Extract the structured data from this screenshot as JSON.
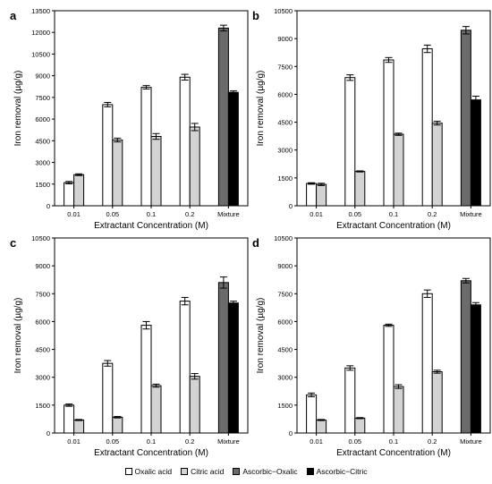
{
  "chart_data": [
    {
      "type": "bar",
      "panel_label": "a",
      "categories": [
        "0.01",
        "0.05",
        "0.1",
        "0.2",
        "Mixture"
      ],
      "xlabel": "Extractant Concentration (M)",
      "ylabel": "Iron removal (µg/g)",
      "ylim": [
        0,
        13500
      ],
      "yticks": [
        0,
        1500,
        3000,
        4500,
        6000,
        7500,
        9000,
        10500,
        12000,
        13500
      ],
      "series": [
        {
          "name": "Oxalic acid",
          "color": "#ffffff",
          "values": [
            1600,
            7000,
            8200,
            8900,
            null
          ],
          "errors": [
            80,
            150,
            120,
            200,
            null
          ]
        },
        {
          "name": "Citric acid",
          "color": "#d3d3d3",
          "values": [
            2150,
            4550,
            4800,
            5450,
            null
          ],
          "errors": [
            60,
            130,
            200,
            250,
            null
          ]
        },
        {
          "name": "Ascorbic−Oxalic",
          "color": "#6b6b6b",
          "values": [
            null,
            null,
            null,
            null,
            12300
          ],
          "errors": [
            null,
            null,
            null,
            null,
            200
          ]
        },
        {
          "name": "Ascorbic−Citric",
          "color": "#000000",
          "values": [
            null,
            null,
            null,
            null,
            7850
          ],
          "errors": [
            null,
            null,
            null,
            null,
            100
          ]
        }
      ]
    },
    {
      "type": "bar",
      "panel_label": "b",
      "categories": [
        "0.01",
        "0.05",
        "0.1",
        "0.2",
        "Mixture"
      ],
      "xlabel": "Extractant Concentration (M)",
      "ylabel": "Iron removal (µg/g)",
      "ylim": [
        0,
        10500
      ],
      "yticks": [
        0,
        1500,
        3000,
        4500,
        6000,
        7500,
        9000,
        10500
      ],
      "series": [
        {
          "name": "Oxalic acid",
          "color": "#ffffff",
          "values": [
            1200,
            6900,
            7850,
            8450,
            null
          ],
          "errors": [
            40,
            150,
            130,
            200,
            null
          ]
        },
        {
          "name": "Citric acid",
          "color": "#d3d3d3",
          "values": [
            1150,
            1850,
            3850,
            4450,
            null
          ],
          "errors": [
            60,
            30,
            60,
            100,
            null
          ]
        },
        {
          "name": "Ascorbic−Oxalic",
          "color": "#6b6b6b",
          "values": [
            null,
            null,
            null,
            null,
            9450
          ],
          "errors": [
            null,
            null,
            null,
            null,
            200
          ]
        },
        {
          "name": "Ascorbic−Citric",
          "color": "#000000",
          "values": [
            null,
            null,
            null,
            null,
            5700
          ],
          "errors": [
            null,
            null,
            null,
            null,
            200
          ]
        }
      ]
    },
    {
      "type": "bar",
      "panel_label": "c",
      "categories": [
        "0.01",
        "0.05",
        "0.1",
        "0.2",
        "Mixture"
      ],
      "xlabel": "Extractant Concentration (M)",
      "ylabel": "Iron removal (µg/g)",
      "ylim": [
        0,
        10500
      ],
      "yticks": [
        0,
        1500,
        3000,
        4500,
        6000,
        7500,
        9000,
        10500
      ],
      "series": [
        {
          "name": "Oxalic acid",
          "color": "#ffffff",
          "values": [
            1500,
            3750,
            5800,
            7100,
            null
          ],
          "errors": [
            60,
            150,
            200,
            200,
            null
          ]
        },
        {
          "name": "Citric acid",
          "color": "#d3d3d3",
          "values": [
            700,
            850,
            2550,
            3050,
            null
          ],
          "errors": [
            30,
            40,
            80,
            150,
            null
          ]
        },
        {
          "name": "Ascorbic−Oxalic",
          "color": "#6b6b6b",
          "values": [
            null,
            null,
            null,
            null,
            8100
          ],
          "errors": [
            null,
            null,
            null,
            null,
            300
          ]
        },
        {
          "name": "Ascorbic−Citric",
          "color": "#000000",
          "values": [
            null,
            null,
            null,
            null,
            7000
          ],
          "errors": [
            null,
            null,
            null,
            null,
            100
          ]
        }
      ]
    },
    {
      "type": "bar",
      "panel_label": "d",
      "categories": [
        "0.01",
        "0.05",
        "0.1",
        "0.2",
        "Mixture"
      ],
      "xlabel": "Extractant Concentration (M)",
      "ylabel": "Iron removal (µg/g)",
      "ylim": [
        0,
        10500
      ],
      "yticks": [
        0,
        1500,
        3000,
        4500,
        6000,
        7500,
        9000,
        10500
      ],
      "series": [
        {
          "name": "Oxalic acid",
          "color": "#ffffff",
          "values": [
            2050,
            3500,
            5800,
            7500,
            null
          ],
          "errors": [
            100,
            120,
            60,
            200,
            null
          ]
        },
        {
          "name": "Citric acid",
          "color": "#d3d3d3",
          "values": [
            700,
            800,
            2500,
            3300,
            null
          ],
          "errors": [
            30,
            30,
            100,
            80,
            null
          ]
        },
        {
          "name": "Ascorbic−Oxalic",
          "color": "#6b6b6b",
          "values": [
            null,
            null,
            null,
            null,
            8200
          ],
          "errors": [
            null,
            null,
            null,
            null,
            120
          ]
        },
        {
          "name": "Ascorbic−Citric",
          "color": "#000000",
          "values": [
            null,
            null,
            null,
            null,
            6900
          ],
          "errors": [
            null,
            null,
            null,
            null,
            120
          ]
        }
      ]
    }
  ],
  "legend": {
    "items": [
      {
        "label": "Oxalic acid",
        "color": "#ffffff"
      },
      {
        "label": "Citric acid",
        "color": "#d3d3d3"
      },
      {
        "label": "Ascorbic−Oxalic",
        "color": "#6b6b6b"
      },
      {
        "label": "Ascorbic−Citric",
        "color": "#000000"
      }
    ]
  }
}
